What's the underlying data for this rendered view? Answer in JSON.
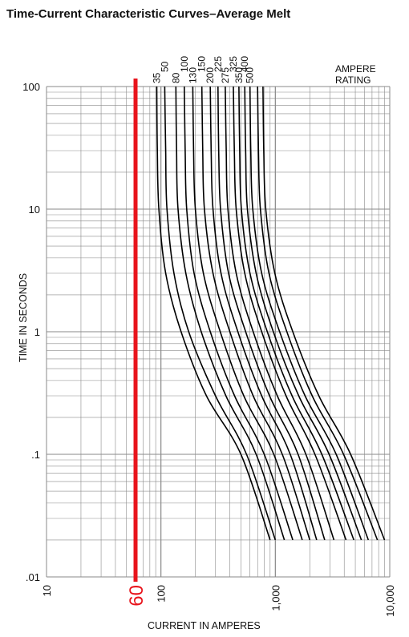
{
  "chart_data": {
    "type": "line",
    "title": "Time-Current Characteristic Curves–Average Melt",
    "xlabel": "CURRENT IN AMPERES",
    "ylabel": "TIME IN SECONDS",
    "x_scale": "log",
    "y_scale": "log",
    "xlim": [
      10,
      10000
    ],
    "ylim": [
      0.01,
      100
    ],
    "x_ticks": [
      {
        "value": 10,
        "label": "10"
      },
      {
        "value": 100,
        "label": "100"
      },
      {
        "value": 1000,
        "label": "1,000"
      },
      {
        "value": 10000,
        "label": "10,000"
      }
    ],
    "y_ticks": [
      {
        "value": 100,
        "label": "100"
      },
      {
        "value": 10,
        "label": "10"
      },
      {
        "value": 1,
        "label": "1"
      },
      {
        "value": 0.1,
        "label": ".1"
      },
      {
        "value": 0.01,
        "label": ".01"
      }
    ],
    "grid": true,
    "legend_title": [
      "AMPERE",
      "RATING"
    ],
    "highlight": {
      "value": 60,
      "label": "60",
      "color": "#e8141c"
    },
    "series": [
      {
        "name": "35",
        "points": [
          [
            92,
            100
          ],
          [
            93,
            30
          ],
          [
            96,
            10
          ],
          [
            110,
            3
          ],
          [
            150,
            1
          ],
          [
            250,
            0.3
          ],
          [
            500,
            0.1
          ],
          [
            900,
            0.02
          ]
        ]
      },
      {
        "name": "50",
        "points": [
          [
            108,
            100
          ],
          [
            110,
            30
          ],
          [
            113,
            10
          ],
          [
            130,
            3
          ],
          [
            175,
            1
          ],
          [
            300,
            0.3
          ],
          [
            560,
            0.1
          ],
          [
            1000,
            0.02
          ]
        ]
      },
      {
        "name": "80",
        "points": [
          [
            135,
            100
          ],
          [
            137,
            30
          ],
          [
            141,
            10
          ],
          [
            165,
            3
          ],
          [
            225,
            1
          ],
          [
            370,
            0.3
          ],
          [
            680,
            0.1
          ],
          [
            1200,
            0.02
          ]
        ]
      },
      {
        "name": "100",
        "points": [
          [
            160,
            100
          ],
          [
            163,
            30
          ],
          [
            168,
            10
          ],
          [
            195,
            3
          ],
          [
            270,
            1
          ],
          [
            440,
            0.3
          ],
          [
            800,
            0.1
          ],
          [
            1420,
            0.02
          ]
        ]
      },
      {
        "name": "130",
        "points": [
          [
            190,
            100
          ],
          [
            193,
            30
          ],
          [
            200,
            10
          ],
          [
            235,
            3
          ],
          [
            330,
            1
          ],
          [
            530,
            0.3
          ],
          [
            970,
            0.1
          ],
          [
            1720,
            0.02
          ]
        ]
      },
      {
        "name": "150",
        "points": [
          [
            228,
            100
          ],
          [
            232,
            30
          ],
          [
            240,
            10
          ],
          [
            285,
            3
          ],
          [
            400,
            1
          ],
          [
            640,
            0.3
          ],
          [
            1150,
            0.1
          ],
          [
            2000,
            0.02
          ]
        ]
      },
      {
        "name": "200",
        "points": [
          [
            270,
            100
          ],
          [
            275,
            30
          ],
          [
            285,
            10
          ],
          [
            335,
            3
          ],
          [
            470,
            1
          ],
          [
            760,
            0.3
          ],
          [
            1350,
            0.1
          ],
          [
            2300,
            0.02
          ]
        ]
      },
      {
        "name": "225",
        "points": [
          [
            315,
            100
          ],
          [
            320,
            30
          ],
          [
            332,
            10
          ],
          [
            390,
            3
          ],
          [
            550,
            1
          ],
          [
            890,
            0.3
          ],
          [
            1580,
            0.1
          ],
          [
            2700,
            0.02
          ]
        ]
      },
      {
        "name": "275",
        "points": [
          [
            365,
            100
          ],
          [
            372,
            30
          ],
          [
            385,
            10
          ],
          [
            455,
            3
          ],
          [
            640,
            1
          ],
          [
            1040,
            0.3
          ],
          [
            1850,
            0.1
          ],
          [
            3250,
            0.02
          ]
        ]
      },
      {
        "name": "325",
        "points": [
          [
            430,
            100
          ],
          [
            438,
            30
          ],
          [
            455,
            10
          ],
          [
            540,
            3
          ],
          [
            760,
            1
          ],
          [
            1240,
            0.3
          ],
          [
            2220,
            0.1
          ],
          [
            4150,
            0.02
          ]
        ]
      },
      {
        "name": "350",
        "points": [
          [
            480,
            100
          ],
          [
            488,
            30
          ],
          [
            505,
            10
          ],
          [
            600,
            3
          ],
          [
            850,
            1
          ],
          [
            1400,
            0.3
          ],
          [
            2550,
            0.1
          ],
          [
            4850,
            0.02
          ]
        ]
      },
      {
        "name": "400",
        "points": [
          [
            540,
            100
          ],
          [
            550,
            30
          ],
          [
            570,
            10
          ],
          [
            680,
            3
          ],
          [
            960,
            1
          ],
          [
            1600,
            0.3
          ],
          [
            2950,
            0.1
          ],
          [
            5650,
            0.02
          ]
        ]
      },
      {
        "name": "500",
        "points": [
          [
            600,
            100
          ],
          [
            610,
            30
          ],
          [
            635,
            10
          ],
          [
            760,
            3
          ],
          [
            1090,
            1
          ],
          [
            1820,
            0.3
          ],
          [
            3400,
            0.1
          ],
          [
            6500,
            0.02
          ]
        ]
      }
    ],
    "extra_series": [
      {
        "name": "",
        "points": [
          [
            700,
            100
          ],
          [
            712,
            30
          ],
          [
            740,
            10
          ],
          [
            880,
            3
          ],
          [
            1260,
            1
          ],
          [
            2100,
            0.3
          ],
          [
            3950,
            0.1
          ],
          [
            7800,
            0.02
          ]
        ]
      },
      {
        "name": "",
        "points": [
          [
            780,
            100
          ],
          [
            792,
            30
          ],
          [
            825,
            10
          ],
          [
            990,
            3
          ],
          [
            1420,
            1
          ],
          [
            2400,
            0.3
          ],
          [
            4550,
            0.1
          ],
          [
            9000,
            0.02
          ]
        ]
      }
    ]
  }
}
